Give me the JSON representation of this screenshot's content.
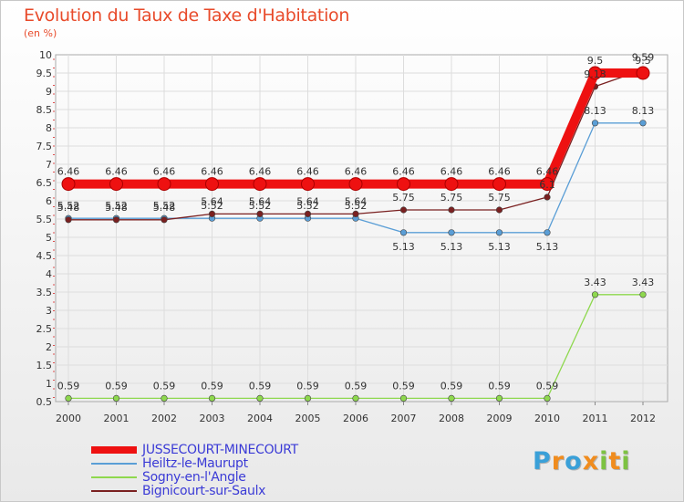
{
  "title": "Evolution du Taux de Taxe d'Habitation",
  "unit_label": "(en %)",
  "logo": {
    "text": "Proxiti",
    "letters": [
      "P",
      "r",
      "o",
      "x",
      "i",
      "t",
      "i"
    ],
    "colors": [
      "#3aa0d8",
      "#f08c1e",
      "#3aa0d8",
      "#f08c1e",
      "#7dc242",
      "#f08c1e",
      "#7dc242"
    ]
  },
  "chart_data": {
    "type": "line",
    "x": [
      "2000",
      "2001",
      "2002",
      "2003",
      "2004",
      "2005",
      "2006",
      "2007",
      "2008",
      "2009",
      "2010",
      "2011",
      "2012"
    ],
    "ylim": [
      0.5,
      10
    ],
    "yticks": [
      "0.5",
      "1",
      "1.5",
      "2",
      "2.5",
      "3",
      "3.5",
      "4",
      "4.5",
      "5",
      "5.5",
      "6",
      "6.5",
      "7",
      "7.5",
      "8",
      "8.5",
      "9",
      "9.5",
      "10"
    ],
    "grid": true,
    "legend_position": "bottom-left",
    "series": [
      {
        "name": "JUSSECOURT-MINECOURT",
        "color": "#ee1111",
        "highlight": true,
        "values": [
          6.46,
          6.46,
          6.46,
          6.46,
          6.46,
          6.46,
          6.46,
          6.46,
          6.46,
          6.46,
          6.46,
          9.5,
          9.5
        ],
        "labels": [
          "6.46",
          "6.46",
          "6.46",
          "6.46",
          "6.46",
          "6.46",
          "6.46",
          "6.46",
          "6.46",
          "6.46",
          "6.46",
          "9.5",
          "9.5"
        ]
      },
      {
        "name": "Heiltz-le-Maurupt",
        "color": "#5a9ed6",
        "values": [
          5.52,
          5.52,
          5.52,
          5.52,
          5.52,
          5.52,
          5.52,
          5.13,
          5.13,
          5.13,
          5.13,
          8.13,
          8.13
        ],
        "labels": [
          "5.52",
          "5.52",
          "5.52",
          "5.52",
          "5.52",
          "5.52",
          "5.52",
          "5.13",
          "5.13",
          "5.13",
          "5.13",
          "8.13",
          "8.13"
        ]
      },
      {
        "name": "Sogny-en-l'Angle",
        "color": "#8ed84e",
        "values": [
          0.59,
          0.59,
          0.59,
          0.59,
          0.59,
          0.59,
          0.59,
          0.59,
          0.59,
          0.59,
          0.59,
          3.43,
          3.43
        ],
        "labels": [
          "0.59",
          "0.59",
          "0.59",
          "0.59",
          "0.59",
          "0.59",
          "0.59",
          "0.59",
          "0.59",
          "0.59",
          "0.59",
          "3.43",
          "3.43"
        ]
      },
      {
        "name": "Bignicourt-sur-Saulx",
        "color": "#7a2020",
        "values": [
          5.48,
          5.48,
          5.48,
          5.64,
          5.64,
          5.64,
          5.64,
          5.75,
          5.75,
          5.75,
          6.1,
          9.13,
          9.59
        ],
        "labels": [
          "5.48",
          "5.48",
          "5.48",
          "5.64",
          "5.64",
          "5.64",
          "5.64",
          "5.75",
          "5.75",
          "5.75",
          "6.1",
          "9.13",
          "9.59"
        ]
      }
    ]
  }
}
